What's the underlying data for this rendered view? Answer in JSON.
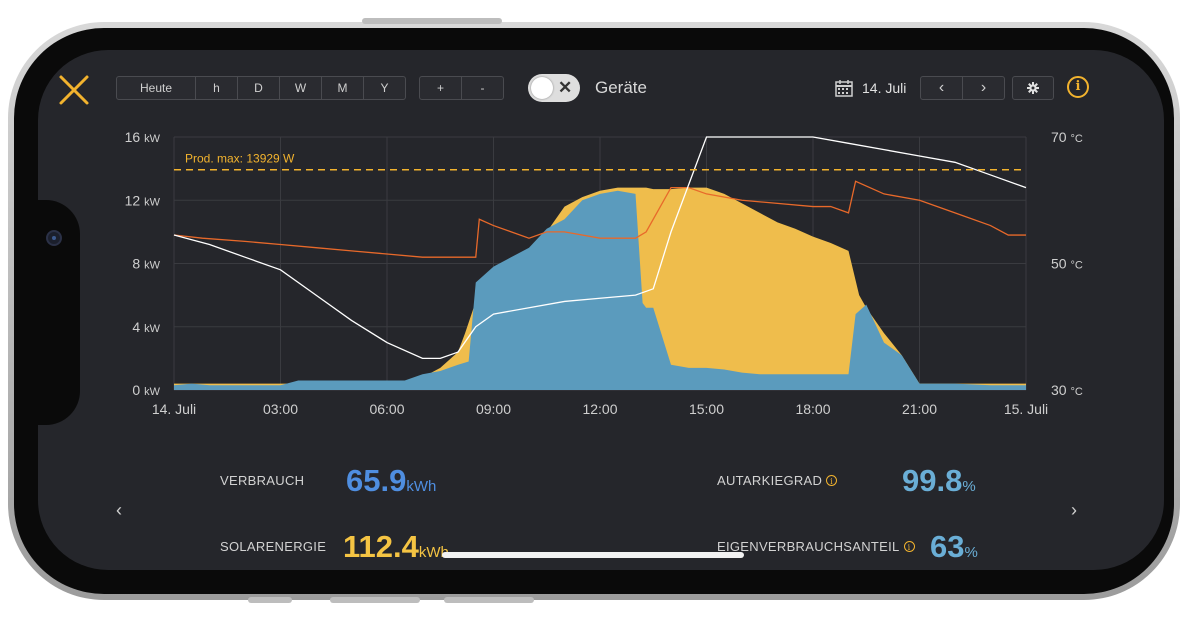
{
  "toolbar": {
    "period_buttons": [
      "Heute",
      "h",
      "D",
      "W",
      "M",
      "Y"
    ],
    "zoom_buttons": [
      "+",
      "-"
    ],
    "devices_label": "Geräte",
    "devices_toggle_on": false,
    "date_label": "14. Juli",
    "prev_label": "‹",
    "next_label": "›",
    "info_label": "i"
  },
  "colors": {
    "accent": "#f2b32e",
    "consumption": "#5b9bbd",
    "solar": "#efbd4c",
    "solar_light": "#f3dc9c",
    "temperature_orange": "#e8692a",
    "temperature_white": "#ffffff",
    "value_blue": "#4f8ee0",
    "value_yellow": "#f5c443",
    "value_teal": "#6aaed6"
  },
  "chart_data": {
    "type": "area",
    "title": "",
    "reference_line": {
      "label": "Prod. max: 13929 W",
      "value_kw": 13.929
    },
    "x_ticks": [
      "14. Juli",
      "03:00",
      "06:00",
      "09:00",
      "12:00",
      "15:00",
      "18:00",
      "21:00",
      "15. Juli"
    ],
    "xlim_hours": [
      0,
      24
    ],
    "y_left": {
      "ticks": [
        0,
        4,
        8,
        12,
        16
      ],
      "unit": "kW",
      "ylim": [
        0,
        16
      ]
    },
    "y_right": {
      "ticks": [
        30,
        50,
        70
      ],
      "unit": "°C",
      "ylim": [
        30,
        70
      ]
    },
    "grid": true,
    "series": [
      {
        "axis": "left",
        "style": "area-yellow",
        "x": [
          0,
          6.5,
          7,
          7.5,
          8,
          8.2,
          8.5,
          8.8,
          9,
          9.5,
          10,
          10.5,
          11,
          11.5,
          12,
          12.5,
          13,
          13.2,
          13.3,
          13.5,
          14,
          14.5,
          15,
          15.5,
          16,
          16.5,
          17,
          17.5,
          18,
          18.5,
          19,
          19.3,
          19.5,
          20,
          20.5,
          21,
          21.5,
          22,
          23,
          24
        ],
        "values": [
          0.4,
          0.4,
          0.8,
          1.4,
          2.4,
          3.6,
          5.6,
          6.8,
          7.2,
          8.2,
          8.8,
          10.0,
          11.6,
          12.2,
          12.6,
          12.8,
          12.8,
          12.8,
          12.8,
          12.7,
          12.7,
          12.8,
          12.8,
          12.4,
          11.8,
          11.2,
          10.6,
          10.2,
          9.7,
          9.3,
          8.8,
          6.0,
          5.2,
          3.6,
          2.2,
          0.4,
          0.4,
          0.4,
          0.4,
          0.4
        ]
      },
      {
        "axis": "left",
        "style": "area-blue",
        "x": [
          0,
          0.5,
          1,
          2,
          3,
          3.5,
          5,
          6,
          6.5,
          7,
          7.5,
          8,
          8.3,
          8.5,
          9,
          9.5,
          10,
          10.5,
          11,
          11.5,
          12,
          12.5,
          13,
          13.2,
          13.3,
          13.5,
          14,
          14.5,
          15,
          15.5,
          16,
          16.5,
          17,
          17.5,
          18,
          18.5,
          19,
          19.2,
          19.5,
          20,
          20.5,
          21,
          22,
          23,
          24
        ],
        "values": [
          0.3,
          0.4,
          0.3,
          0.3,
          0.3,
          0.6,
          0.6,
          0.6,
          0.6,
          1.0,
          1.2,
          1.6,
          1.8,
          6.8,
          7.8,
          8.4,
          9.0,
          10.2,
          10.8,
          12.0,
          12.4,
          12.6,
          12.4,
          5.5,
          5.2,
          5.2,
          1.6,
          1.4,
          1.4,
          1.3,
          1.1,
          1.0,
          1.0,
          1.0,
          1.0,
          1.0,
          1.0,
          4.8,
          5.4,
          3.0,
          2.2,
          0.4,
          0.4,
          0.3,
          0.3
        ]
      },
      {
        "axis": "right",
        "style": "line-orange",
        "x": [
          0,
          0.8,
          2,
          3,
          4,
          5,
          6,
          7,
          8,
          8.5,
          8.6,
          9,
          9.5,
          10,
          10.5,
          11,
          12,
          13,
          13.3,
          14,
          14.5,
          15,
          16,
          17,
          18,
          18.5,
          19,
          19.2,
          20,
          21,
          22,
          23,
          23.5,
          24
        ],
        "values": [
          54.5,
          54.0,
          53.5,
          53.0,
          52.5,
          52.0,
          51.5,
          51.0,
          51.0,
          51.0,
          57.0,
          56.0,
          55.0,
          54.0,
          55.0,
          55.0,
          54.0,
          54.0,
          55.0,
          62.0,
          62.0,
          61.0,
          60.0,
          59.5,
          59.0,
          59.0,
          58.0,
          63.0,
          61.0,
          60.0,
          58.0,
          56.0,
          54.5,
          54.5
        ]
      },
      {
        "axis": "right",
        "style": "line-white",
        "x": [
          0,
          1,
          2,
          3,
          4,
          5,
          6,
          7,
          7.5,
          8,
          8.5,
          9,
          10,
          11,
          12,
          13,
          13.5,
          14,
          15,
          15.5,
          16,
          17,
          18,
          19,
          20,
          21,
          22,
          23,
          24
        ],
        "values": [
          54.5,
          53.0,
          51.0,
          49.0,
          45.0,
          41.0,
          37.5,
          35.0,
          35.0,
          36.0,
          40.0,
          42.0,
          43.0,
          44.0,
          44.5,
          45.0,
          46.0,
          55.0,
          70.0,
          70.0,
          70.0,
          70.0,
          70.0,
          69.0,
          68.0,
          67.0,
          66.0,
          64.0,
          62.0
        ]
      }
    ]
  },
  "stats": {
    "verbrauch": {
      "label": "VERBRAUCH",
      "value": "65.9",
      "unit": "kWh"
    },
    "solar": {
      "label": "SOLARENERGIE",
      "value": "112.4",
      "unit": "kWh"
    },
    "autarkie": {
      "label": "AUTARKIEGRAD",
      "value": "99.8",
      "unit": "%"
    },
    "eigen": {
      "label": "EIGENVERBRAUCHSANTEIL",
      "value": "63",
      "unit": "%"
    }
  },
  "nav": {
    "left": "‹",
    "right": "›"
  }
}
